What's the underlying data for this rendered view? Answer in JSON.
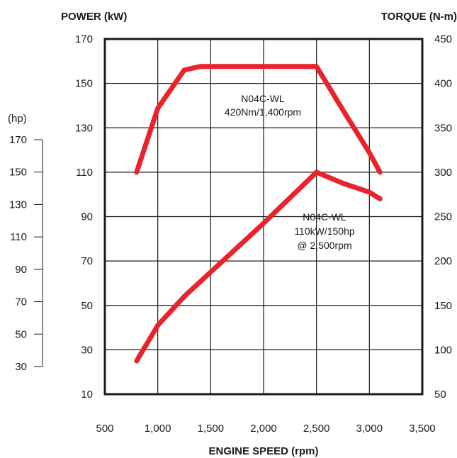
{
  "chart_data": {
    "type": "line",
    "title": "",
    "xlabel": "ENGINE SPEED (rpm)",
    "left_axis_label": "POWER (kW)",
    "right_axis_label": "TORQUE (N-m)",
    "hp_axis_label": "(hp)",
    "x_ticks": [
      "500",
      "1,000",
      "1,500",
      "2,000",
      "2,500",
      "3,000",
      "3,500"
    ],
    "kw_ticks": [
      "10",
      "30",
      "50",
      "70",
      "90",
      "110",
      "130",
      "150",
      "170"
    ],
    "nm_ticks": [
      "50",
      "100",
      "150",
      "200",
      "250",
      "300",
      "350",
      "400",
      "450"
    ],
    "hp_ticks": [
      "30",
      "50",
      "70",
      "90",
      "110",
      "130",
      "150",
      "170"
    ],
    "xlim": [
      500,
      3500
    ],
    "kw_lim": [
      10,
      170
    ],
    "nm_lim": [
      50,
      450
    ],
    "hp_lim": [
      30,
      170
    ],
    "grid": true,
    "line_color": "#e8232b",
    "series": [
      {
        "axis": "torque",
        "x": [
          800,
          1000,
          1250,
          1400,
          1600,
          2000,
          2500,
          2750,
          3000,
          3100
        ],
        "y": [
          300,
          372,
          415,
          419,
          419,
          419,
          419,
          370,
          322,
          300
        ]
      },
      {
        "axis": "power",
        "x": [
          800,
          1000,
          1250,
          1500,
          2000,
          2500,
          2750,
          3000,
          3100
        ],
        "y": [
          25,
          41,
          54,
          65,
          87,
          110,
          105,
          101,
          98
        ]
      }
    ],
    "annotations": [
      {
        "lines": [
          "N04C-WL",
          "420Nm/1,400rpm"
        ]
      },
      {
        "lines": [
          "N04C-WL",
          "110kW/150hp",
          "@ 2,500rpm"
        ]
      }
    ]
  }
}
